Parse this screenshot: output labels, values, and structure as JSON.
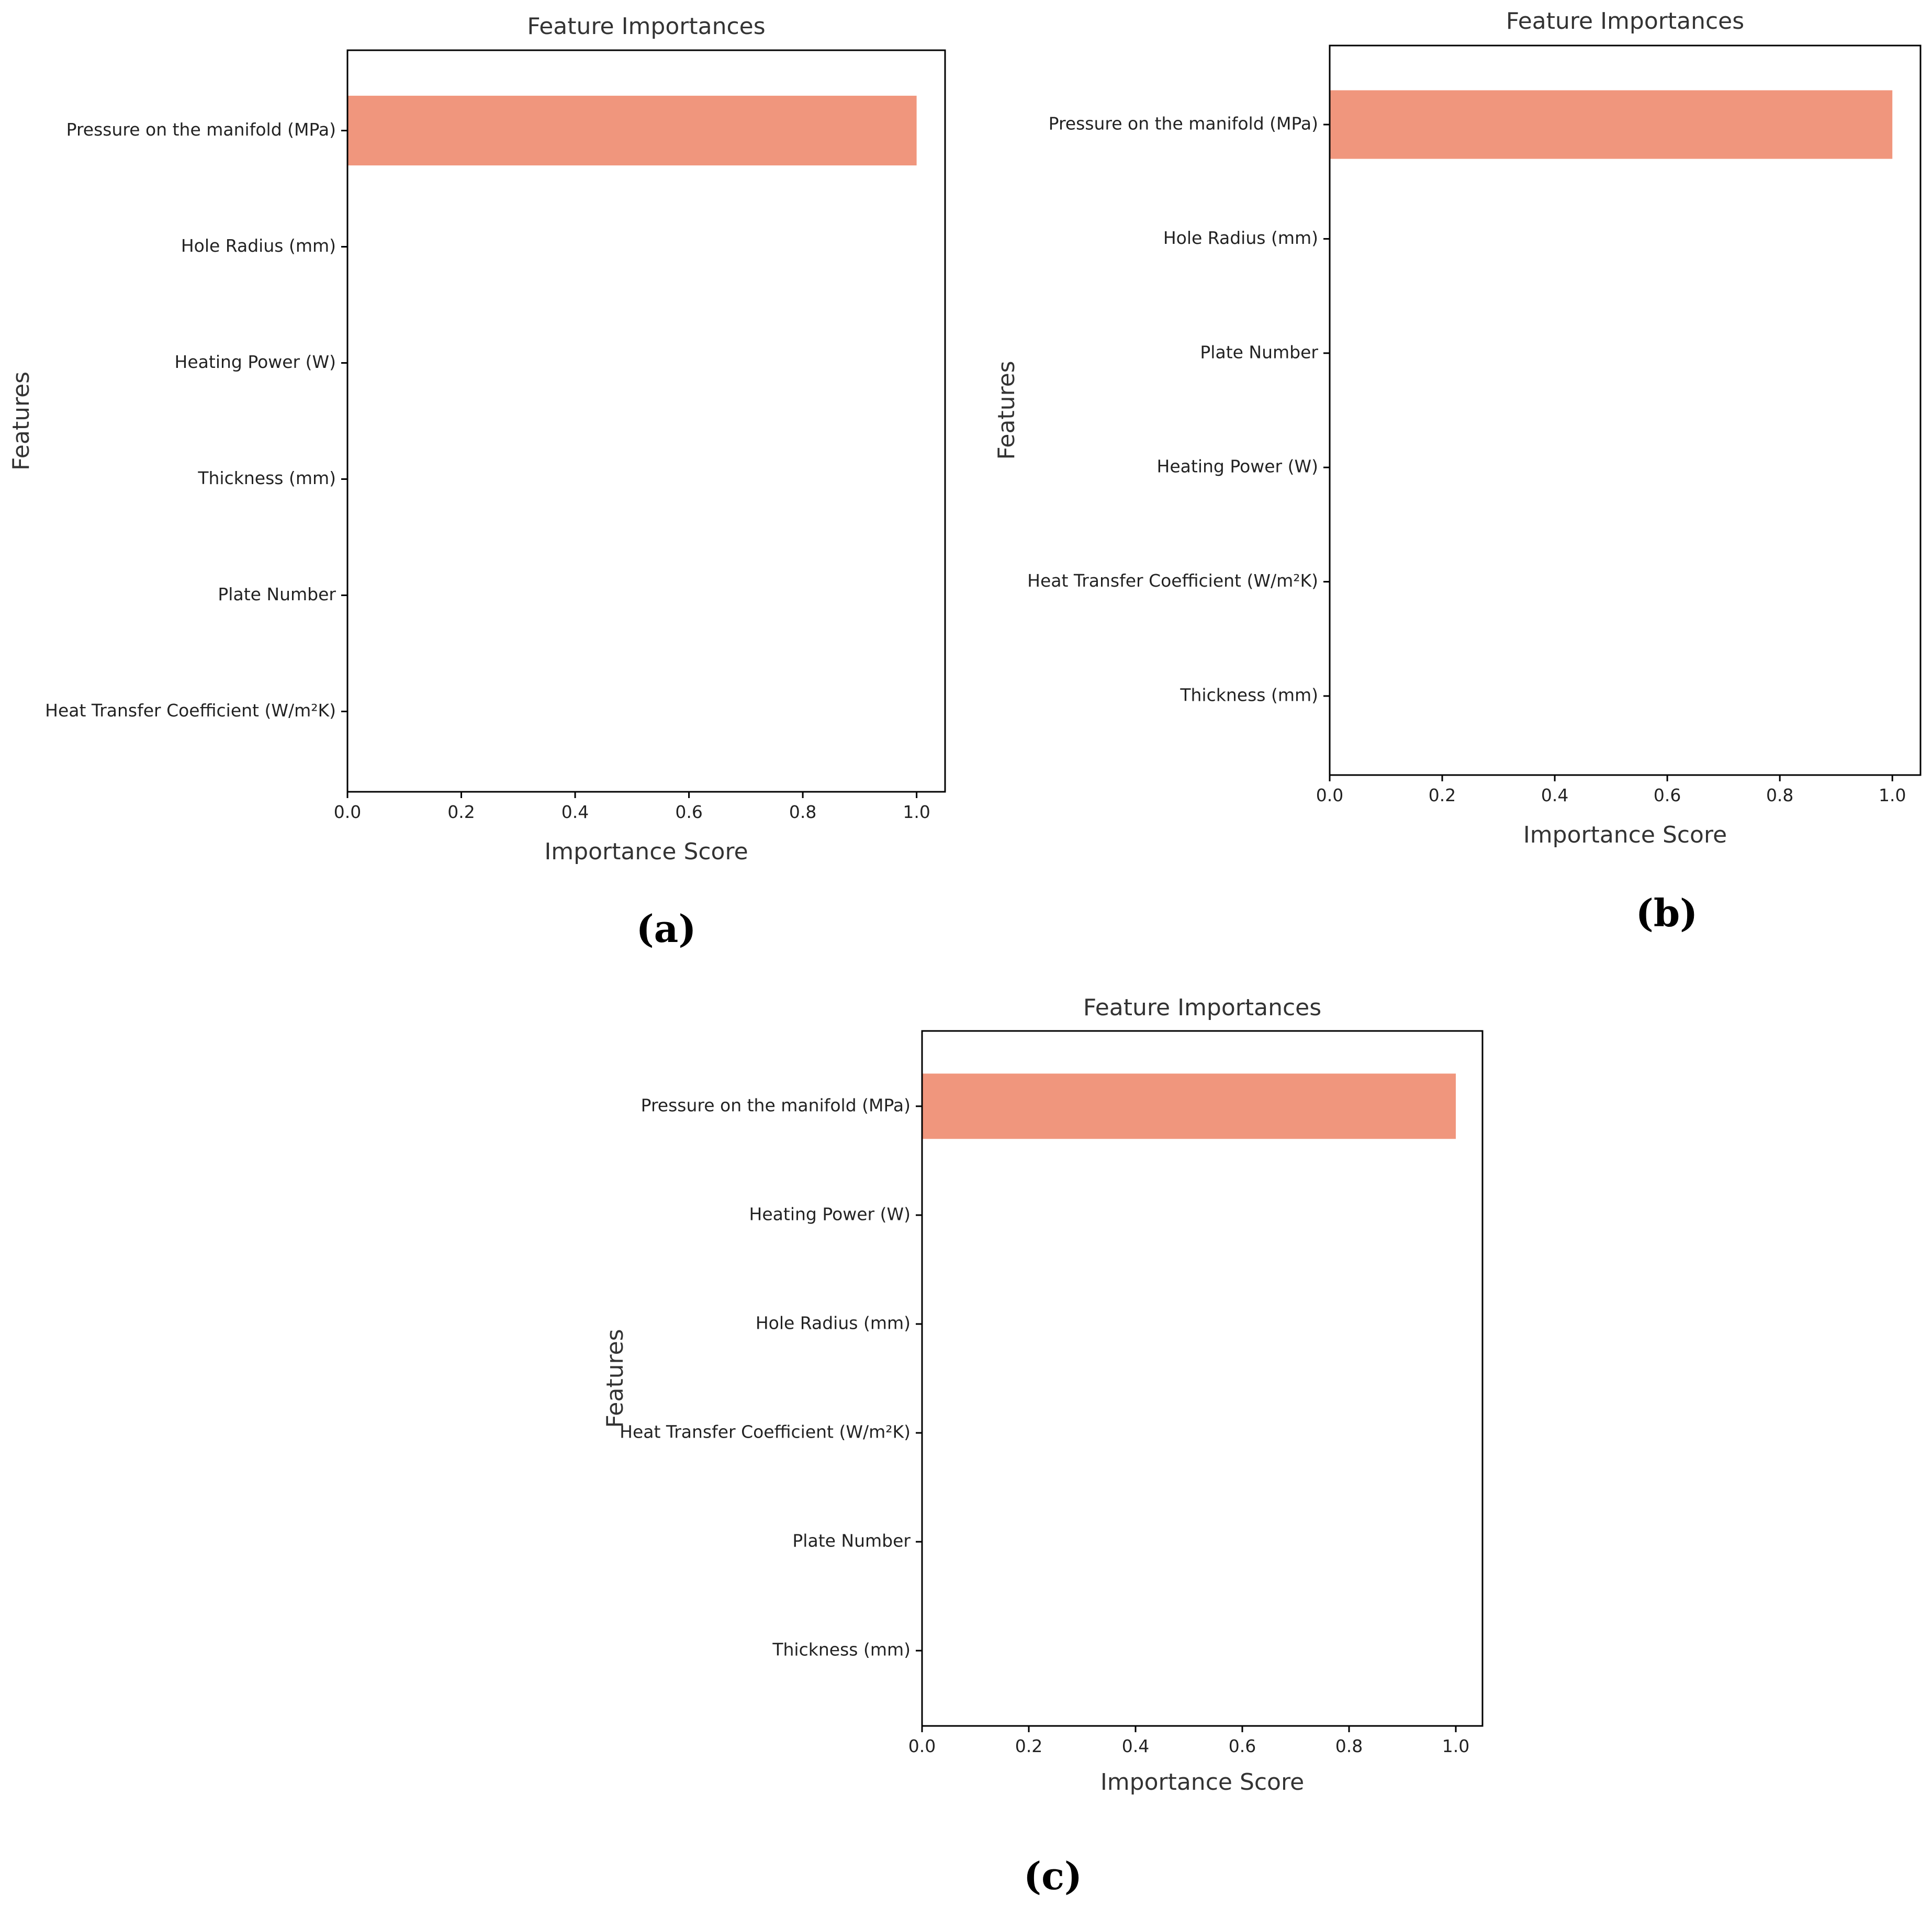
{
  "figure": {
    "bar_color": "#F0967D",
    "panel_labels": [
      "(a)",
      "(b)",
      "(c)"
    ]
  },
  "chart_data": [
    {
      "type": "bar",
      "orientation": "horizontal",
      "title": "Feature Importances",
      "xlabel": "Importance Score",
      "ylabel": "Features",
      "categories": [
        "Pressure on the manifold (MPa)",
        "Hole Radius (mm)",
        "Heating Power (W)",
        "Thickness (mm)",
        "Plate Number",
        "Heat Transfer Coefficient (W/m²K)"
      ],
      "values": [
        1.0,
        0.0,
        0.0,
        0.0,
        0.0,
        0.0
      ],
      "xlim": [
        0.0,
        1.05
      ],
      "xticks": [
        "0.0",
        "0.2",
        "0.4",
        "0.6",
        "0.8",
        "1.0"
      ],
      "grid": false,
      "color": "#F0967D"
    },
    {
      "type": "bar",
      "orientation": "horizontal",
      "title": "Feature Importances",
      "xlabel": "Importance Score",
      "ylabel": "Features",
      "categories": [
        "Pressure on the manifold (MPa)",
        "Hole Radius (mm)",
        "Plate Number",
        "Heating Power (W)",
        "Heat Transfer Coefficient (W/m²K)",
        "Thickness (mm)"
      ],
      "values": [
        1.0,
        0.0,
        0.0,
        0.0,
        0.0,
        0.0
      ],
      "xlim": [
        0.0,
        1.05
      ],
      "xticks": [
        "0.0",
        "0.2",
        "0.4",
        "0.6",
        "0.8",
        "1.0"
      ],
      "grid": false,
      "color": "#F0967D"
    },
    {
      "type": "bar",
      "orientation": "horizontal",
      "title": "Feature Importances",
      "xlabel": "Importance Score",
      "ylabel": "Features",
      "categories": [
        "Pressure on the manifold (MPa)",
        "Heating Power (W)",
        "Hole Radius (mm)",
        "Heat Transfer Coefficient (W/m²K)",
        "Plate Number",
        "Thickness (mm)"
      ],
      "values": [
        1.0,
        0.0,
        0.0,
        0.0,
        0.0,
        0.0
      ],
      "xlim": [
        0.0,
        1.05
      ],
      "xticks": [
        "0.0",
        "0.2",
        "0.4",
        "0.6",
        "0.8",
        "1.0"
      ],
      "grid": false,
      "color": "#F0967D"
    }
  ]
}
